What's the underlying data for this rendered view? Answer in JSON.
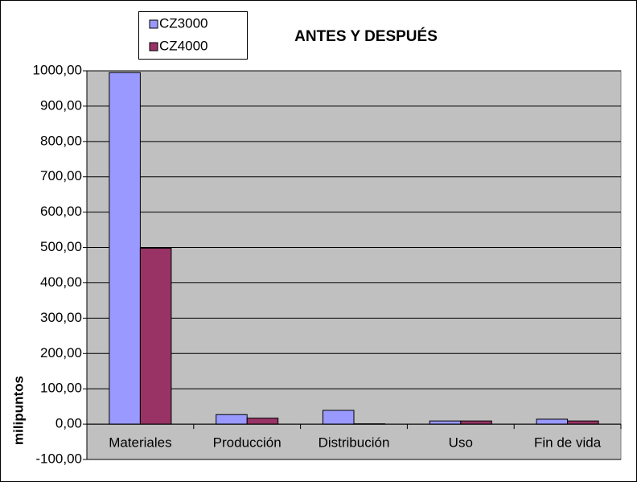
{
  "chart_data": {
    "type": "bar",
    "title": "ANTES Y DESPUÉS",
    "y_label": "milipuntos",
    "categories": [
      "Materiales",
      "Producción",
      "Distribución",
      "Uso",
      "Fin de vida"
    ],
    "series": [
      {
        "name": "CZ3000",
        "color": "#9999ff",
        "values": [
          995,
          27,
          39,
          9,
          14
        ]
      },
      {
        "name": "CZ4000",
        "color": "#993366",
        "values": [
          498,
          17,
          1,
          9,
          9
        ]
      }
    ],
    "ylim": [
      -100,
      1000
    ],
    "yticks": [
      {
        "value": -100,
        "label": "-100,00"
      },
      {
        "value": 0,
        "label": "0,00"
      },
      {
        "value": 100,
        "label": "100,00"
      },
      {
        "value": 200,
        "label": "200,00"
      },
      {
        "value": 300,
        "label": "300,00"
      },
      {
        "value": 400,
        "label": "400,00"
      },
      {
        "value": 500,
        "label": "500,00"
      },
      {
        "value": 600,
        "label": "600,00"
      },
      {
        "value": 700,
        "label": "700,00"
      },
      {
        "value": 800,
        "label": "800,00"
      },
      {
        "value": 900,
        "label": "900,00"
      },
      {
        "value": 1000,
        "label": "1000,00"
      }
    ],
    "grid": true,
    "plot_background": "#c0c0c0",
    "legend": "top-left"
  }
}
